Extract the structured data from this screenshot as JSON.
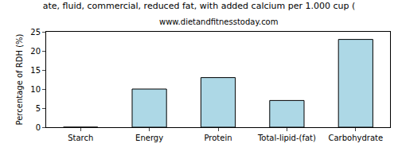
{
  "chart_data": {
    "type": "bar",
    "title": "ate, fluid, commercial, reduced fat, with added calcium per 1.000 cup (",
    "subtitle": "www.dietandfitnesstoday.com",
    "y_label": "Percentage of RDH (%)",
    "categories": [
      "Starch",
      "Energy",
      "Protein",
      "Total-lipid-(fat)",
      "Carbohydrate"
    ],
    "values": [
      0,
      10,
      13,
      7,
      23
    ],
    "color": "#add8e6",
    "ylim": [
      0,
      25
    ],
    "yticks": [
      0,
      5,
      10,
      15,
      20,
      25
    ],
    "grid": false
  }
}
